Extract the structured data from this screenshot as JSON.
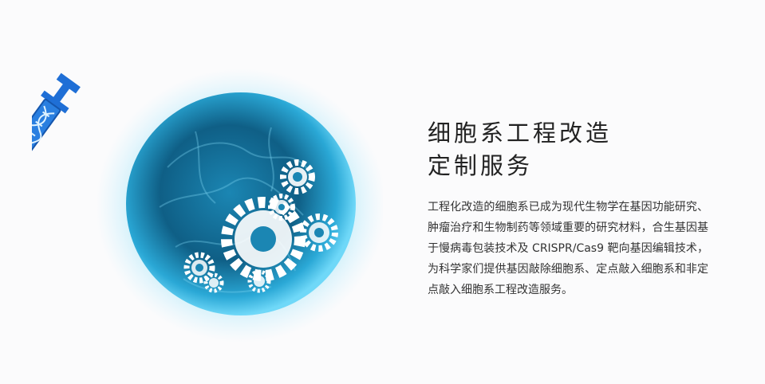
{
  "hero": {
    "title_line1": "细胞系工程改造",
    "title_line2": "定制服务",
    "description": "工程化改造的细胞系已成为现代生物学在基因功能研究、肿瘤治疗和生物制药等领域重要的研究材料，合生基因基于慢病毒包装技术及 CRISPR/Cas9 靶向基因编辑技术，为科学家们提供基因敲除细胞系、定点敲入细胞系和非定点敲入细胞系工程改造服务。"
  },
  "colors": {
    "background": "#fbfbfc",
    "cell_core": "#0f5f86",
    "cell_glow": "#3ec6f3",
    "syringe_blue": "#1f6fd6",
    "gear_white": "#ffffff",
    "title_text": "#222222",
    "body_text": "#333333"
  },
  "icons": [
    "syringe-icon",
    "dna-helix-icon",
    "gear-icon",
    "cell-icon"
  ]
}
